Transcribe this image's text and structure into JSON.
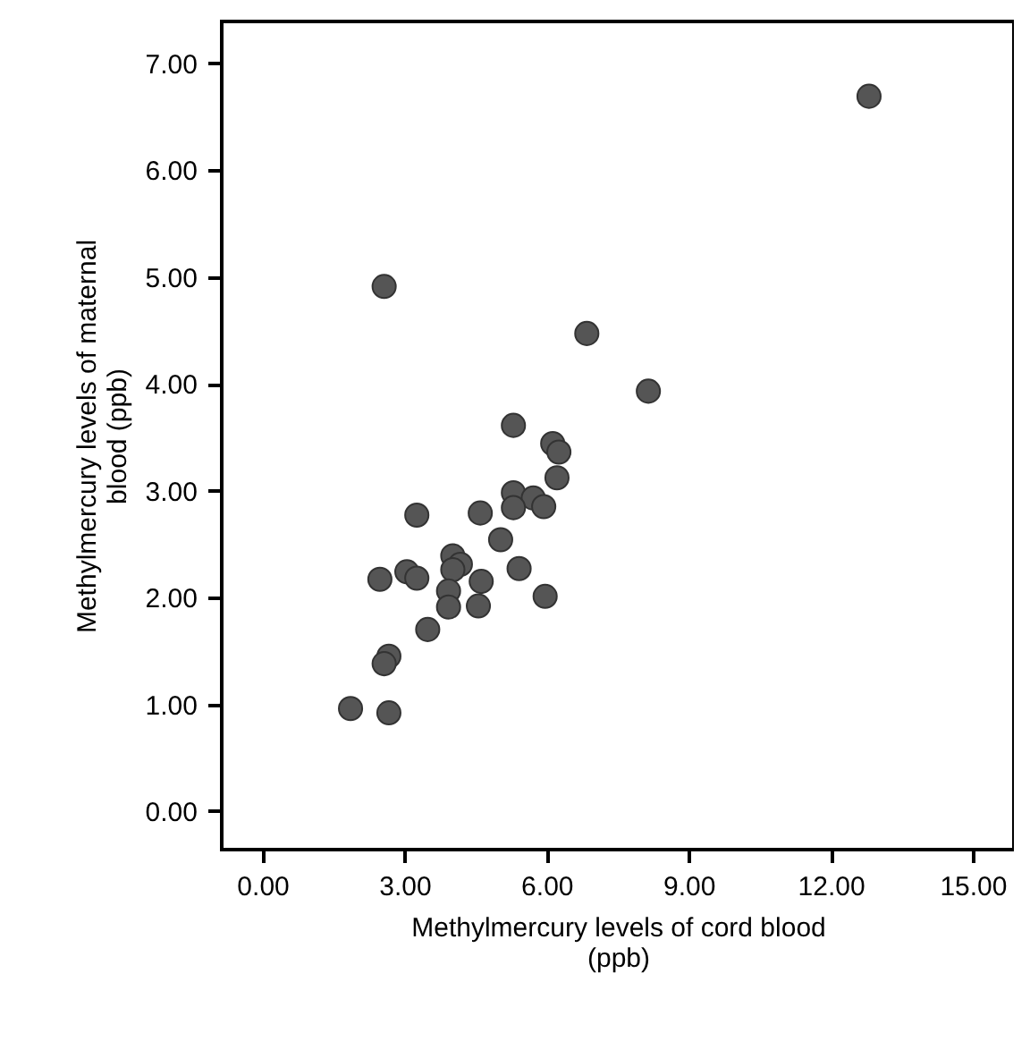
{
  "chart_data": {
    "type": "scatter",
    "xlabel": "Methylmercury levels of cord blood\n(ppb)",
    "ylabel": "Methylmercury levels of maternal\nblood (ppb)",
    "x": [
      12.81,
      2.57,
      6.85,
      8.15,
      5.3,
      6.13,
      6.26,
      6.22,
      5.3,
      5.72,
      5.3,
      5.94,
      3.26,
      4.6,
      5.03,
      4.02,
      4.18,
      4.02,
      5.42,
      3.05,
      3.26,
      2.48,
      4.62,
      3.93,
      5.97,
      3.93,
      4.56,
      3.49,
      2.67,
      2.57,
      1.86,
      2.67
    ],
    "series": [
      {
        "color": "#555555",
        "values": [
          6.69,
          4.91,
          4.47,
          3.93,
          3.61,
          3.44,
          3.36,
          3.12,
          2.98,
          2.93,
          2.84,
          2.85,
          2.77,
          2.79,
          2.54,
          2.39,
          2.31,
          2.26,
          2.27,
          2.24,
          2.18,
          2.17,
          2.15,
          2.06,
          2.01,
          1.91,
          1.92,
          1.7,
          1.45,
          1.38,
          0.96,
          0.92
        ]
      }
    ],
    "xlim": [
      -0.86,
      15.87
    ],
    "ylim": [
      -0.36,
      7.39
    ],
    "xticks": [
      {
        "value": 0,
        "label": "0.00"
      },
      {
        "value": 3,
        "label": "3.00"
      },
      {
        "value": 6,
        "label": "6.00"
      },
      {
        "value": 9,
        "label": "9.00"
      },
      {
        "value": 12,
        "label": "12.00"
      },
      {
        "value": 15,
        "label": "15.00"
      }
    ],
    "yticks": [
      {
        "value": 0,
        "label": "0.00"
      },
      {
        "value": 1,
        "label": "1.00"
      },
      {
        "value": 2,
        "label": "2.00"
      },
      {
        "value": 3,
        "label": "3.00"
      },
      {
        "value": 4,
        "label": "4.00"
      },
      {
        "value": 5,
        "label": "5.00"
      },
      {
        "value": 6,
        "label": "6.00"
      },
      {
        "value": 7,
        "label": "7.00"
      }
    ],
    "grid": false,
    "legend": false,
    "marker": "circle"
  }
}
